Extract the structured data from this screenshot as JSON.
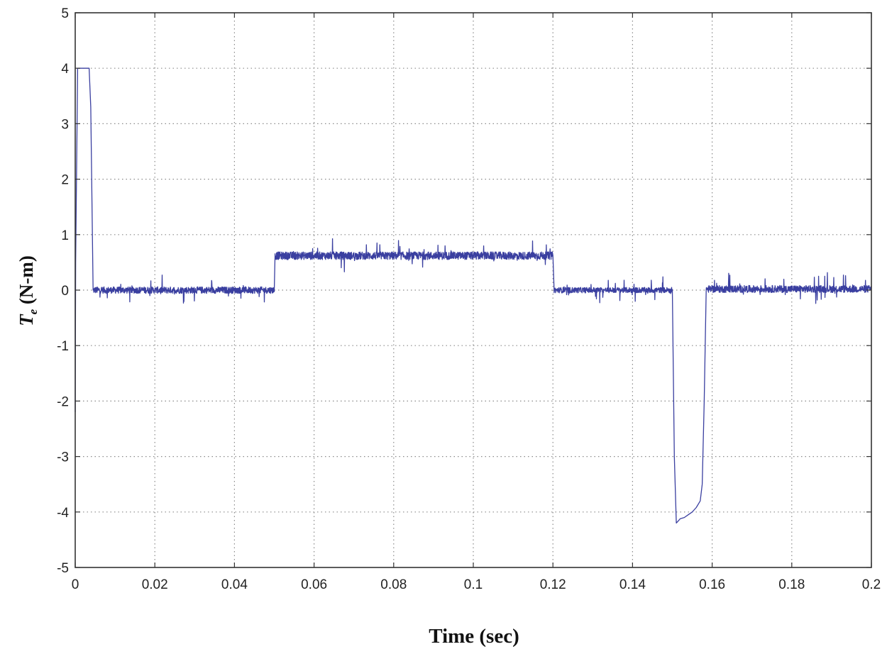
{
  "chart_data": {
    "type": "line",
    "title": "",
    "xlabel": "Time (sec)",
    "ylabel_symbol": "T",
    "ylabel_subscript": "e",
    "ylabel_unit": " (N-m)",
    "xlim": [
      0,
      0.2
    ],
    "ylim": [
      -5,
      5
    ],
    "grid": true,
    "legend": "none",
    "x_ticks": [
      {
        "value": 0,
        "label": "0"
      },
      {
        "value": 0.02,
        "label": "0.02"
      },
      {
        "value": 0.04,
        "label": "0.04"
      },
      {
        "value": 0.06,
        "label": "0.06"
      },
      {
        "value": 0.08,
        "label": "0.08"
      },
      {
        "value": 0.1,
        "label": "0.1"
      },
      {
        "value": 0.12,
        "label": "0.12"
      },
      {
        "value": 0.14,
        "label": "0.14"
      },
      {
        "value": 0.16,
        "label": "0.16"
      },
      {
        "value": 0.18,
        "label": "0.18"
      },
      {
        "value": 0.2,
        "label": "0.2"
      }
    ],
    "y_ticks": [
      {
        "value": 5,
        "label": "5"
      },
      {
        "value": 4,
        "label": "4"
      },
      {
        "value": 3,
        "label": "3"
      },
      {
        "value": 2,
        "label": "2"
      },
      {
        "value": 1,
        "label": "1"
      },
      {
        "value": 0,
        "label": "0"
      },
      {
        "value": -1,
        "label": "-1"
      },
      {
        "value": -2,
        "label": "-2"
      },
      {
        "value": -3,
        "label": "-3"
      },
      {
        "value": -4,
        "label": "-4"
      },
      {
        "value": -5,
        "label": "-5"
      }
    ],
    "series": [
      {
        "color": "#3a3fa0",
        "segments": [
          {
            "x": [
              0,
              0.0001,
              0.0006,
              0.0035,
              0.0039,
              0.0045
            ],
            "y": [
              -2.2,
              0.5,
              4.0,
              4.0,
              3.3,
              0.0
            ]
          },
          {
            "from": 0.0045,
            "to": 0.05,
            "level": 0.0,
            "noise": 0.12
          },
          {
            "x": [
              0.05,
              0.0502
            ],
            "y": [
              0.0,
              0.62
            ]
          },
          {
            "from": 0.0502,
            "to": 0.12,
            "level": 0.62,
            "noise": 0.14
          },
          {
            "x": [
              0.12,
              0.1203
            ],
            "y": [
              0.62,
              0.0
            ]
          },
          {
            "from": 0.1203,
            "to": 0.15,
            "level": 0.0,
            "noise": 0.1
          },
          {
            "x": [
              0.15,
              0.1505,
              0.151
            ],
            "y": [
              0.0,
              -3.0,
              -4.2
            ]
          },
          {
            "x": [
              0.151,
              0.152,
              0.153,
              0.154,
              0.155,
              0.156,
              0.157,
              0.1575
            ],
            "y": [
              -4.2,
              -4.12,
              -4.1,
              -4.05,
              -4.0,
              -3.92,
              -3.8,
              -3.5
            ]
          },
          {
            "x": [
              0.1575,
              0.158,
              0.1585
            ],
            "y": [
              -3.5,
              -2.0,
              0.0
            ]
          },
          {
            "from": 0.1585,
            "to": 0.2,
            "level": 0.02,
            "noise": 0.13
          }
        ]
      }
    ]
  }
}
